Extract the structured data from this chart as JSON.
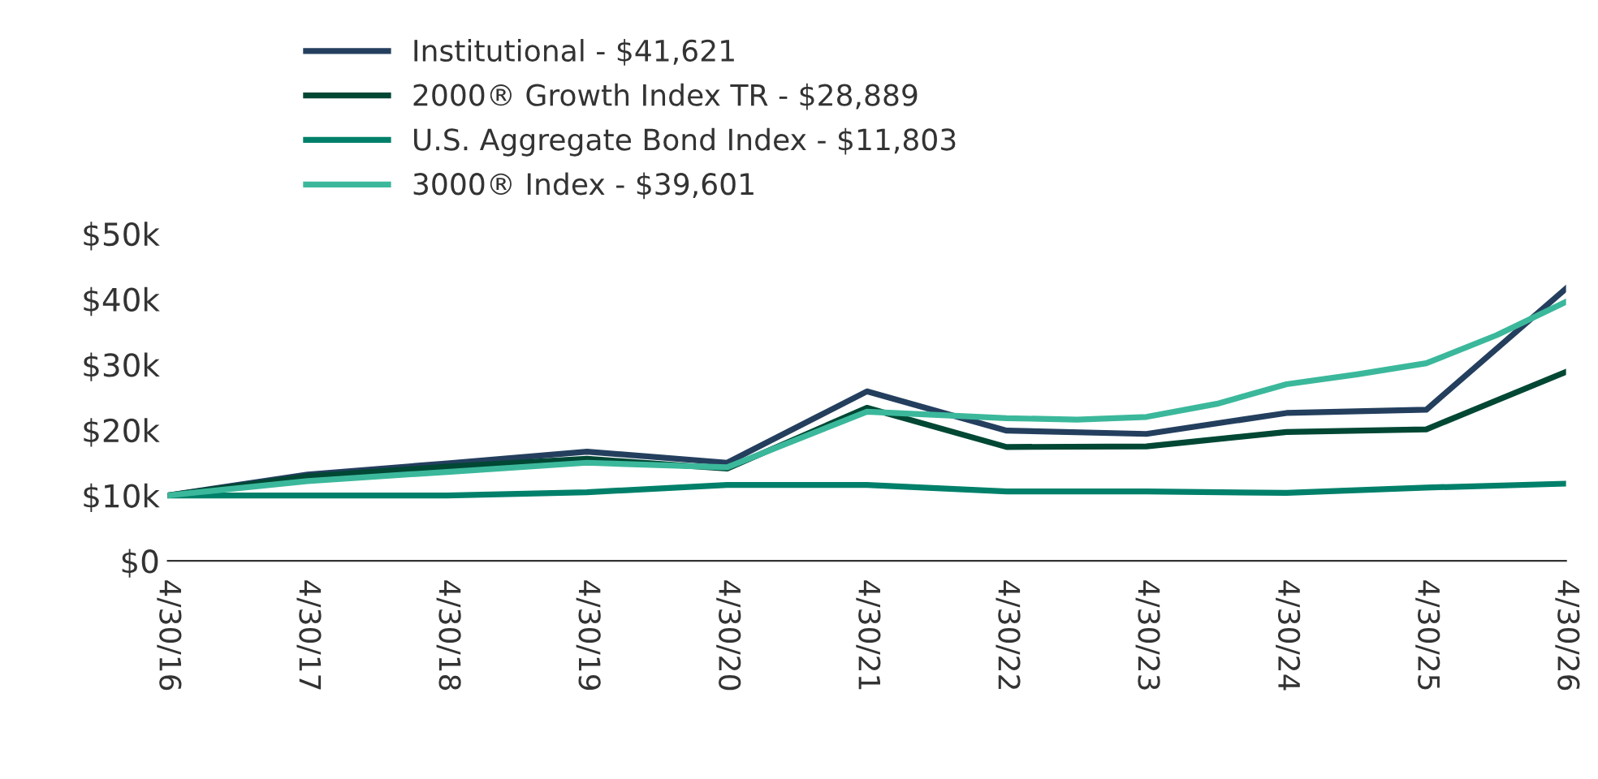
{
  "chart_data": {
    "type": "line",
    "x": [
      "2016-04-30",
      "2017-04-30",
      "2018-04-30",
      "2019-04-30",
      "2020-04-30",
      "2021-04-30",
      "2022-04-30",
      "2023-04-30",
      "2024-04-30",
      "2025-04-30",
      "2026-04-30"
    ],
    "series": [
      {
        "name": "Institutional - $41,621",
        "color": "#243f5e",
        "values": [
          10000,
          13200,
          14900,
          16700,
          15000,
          25900,
          19900,
          19400,
          22600,
          23100,
          41621
        ]
      },
      {
        "name": "2000® Growth Index TR - $28,889",
        "color": "#004734",
        "values": [
          10000,
          12900,
          14400,
          15600,
          14100,
          23400,
          17400,
          17500,
          19700,
          20100,
          28889
        ]
      },
      {
        "name": "U.S. Aggregate Bond Index - $11,803",
        "color": "#00806a",
        "values": [
          10000,
          10000,
          10000,
          10500,
          11600,
          11600,
          10600,
          10600,
          10400,
          11200,
          11803
        ]
      },
      {
        "name": "3000® Index - $39,601",
        "color": "#3bb89b",
        "x": [
          "2016-04-30",
          "2017-04-30",
          "2018-04-30",
          "2019-04-30",
          "2020-04-30",
          "2021-04-30",
          "2021-10-31",
          "2022-04-30",
          "2022-10-31",
          "2023-04-30",
          "2023-10-31",
          "2024-04-30",
          "2024-10-31",
          "2025-04-30",
          "2025-10-31",
          "2026-04-30"
        ],
        "values": [
          10000,
          12200,
          13600,
          15000,
          14300,
          22800,
          22300,
          21800,
          21600,
          22000,
          24000,
          27000,
          28500,
          30200,
          34500,
          39601
        ]
      }
    ],
    "xlim": [
      "2016-04-30",
      "2026-04-30"
    ],
    "xticks": [
      {
        "value": "2016-04-30",
        "label": "4/30/16"
      },
      {
        "value": "2017-04-30",
        "label": "4/30/17"
      },
      {
        "value": "2018-04-30",
        "label": "4/30/18"
      },
      {
        "value": "2019-04-30",
        "label": "4/30/19"
      },
      {
        "value": "2020-04-30",
        "label": "4/30/20"
      },
      {
        "value": "2021-04-30",
        "label": "4/30/21"
      },
      {
        "value": "2022-04-30",
        "label": "4/30/22"
      },
      {
        "value": "2023-04-30",
        "label": "4/30/23"
      },
      {
        "value": "2024-04-30",
        "label": "4/30/24"
      },
      {
        "value": "2025-04-30",
        "label": "4/30/25"
      },
      {
        "value": "2026-04-30",
        "label": "4/30/26"
      }
    ],
    "ylim": [
      0,
      50000
    ],
    "yticks": [
      {
        "value": 0,
        "label": "$0"
      },
      {
        "value": 10000,
        "label": "$10k"
      },
      {
        "value": 20000,
        "label": "$20k"
      },
      {
        "value": 30000,
        "label": "$30k"
      },
      {
        "value": 40000,
        "label": "$40k"
      },
      {
        "value": 50000,
        "label": "$50k"
      }
    ],
    "grid": false,
    "legend": "top left",
    "marker": "none",
    "line_style": "solid"
  }
}
